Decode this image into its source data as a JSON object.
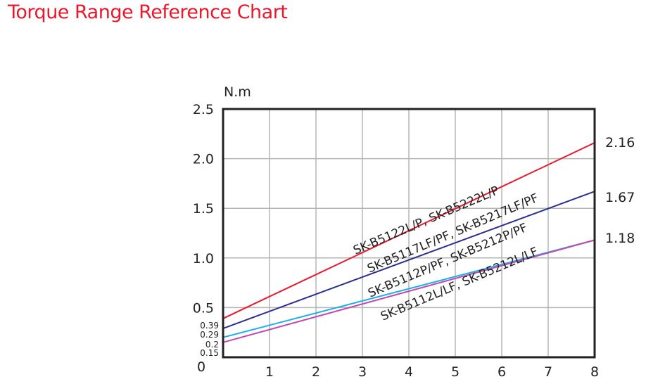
{
  "chart_data": {
    "type": "line",
    "title": "Torque Range Reference Chart",
    "ylabel": "N.m",
    "xlabel": "",
    "xlim": [
      0,
      8
    ],
    "ylim": [
      0,
      2.5
    ],
    "grid": true,
    "x_ticks": [
      "1",
      "2",
      "3",
      "4",
      "5",
      "6",
      "7",
      "8"
    ],
    "y_ticks": [
      "0",
      "0.5",
      "1.0",
      "1.5",
      "2.0",
      "2.5"
    ],
    "series": [
      {
        "name": "SK-B5122L/P, SK-B5222L/P",
        "color": "#e8192c",
        "x": [
          0,
          8
        ],
        "y": [
          0.39,
          2.16
        ],
        "start_label": "0.39",
        "end_label": "2.16"
      },
      {
        "name": "SK-B5117LF/PF, SK-B5217LF/PF",
        "color": "#2b2f8f",
        "x": [
          0,
          8
        ],
        "y": [
          0.29,
          1.67
        ],
        "start_label": "0.29",
        "end_label": "1.67"
      },
      {
        "name": "SK-B5112P/PF, SK-B5212P/PF",
        "color": "#1fb0e6",
        "x": [
          0,
          8
        ],
        "y": [
          0.2,
          1.18
        ],
        "start_label": "0.2",
        "end_label": "1.18"
      },
      {
        "name": "SK-B5112L/LF, SK-B5212L/LF",
        "color": "#c04ab0",
        "x": [
          0,
          8
        ],
        "y": [
          0.15,
          1.18
        ],
        "start_label": "0.15",
        "end_label": ""
      }
    ]
  }
}
